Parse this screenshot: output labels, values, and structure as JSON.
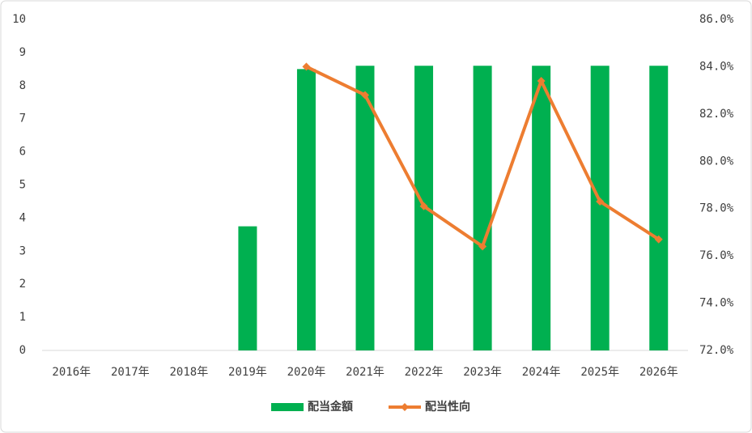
{
  "chart_data": {
    "type": "bar",
    "categories": [
      "2016年",
      "2017年",
      "2018年",
      "2019年",
      "2020年",
      "2021年",
      "2022年",
      "2023年",
      "2024年",
      "2025年",
      "2026年"
    ],
    "series": [
      {
        "name": "配当金額",
        "type": "bar",
        "color": "#00b050",
        "values": [
          null,
          null,
          null,
          3.75,
          8.5,
          8.6,
          8.6,
          8.6,
          8.6,
          8.6,
          8.6
        ]
      },
      {
        "name": "配当性向",
        "type": "line",
        "axis": "y2",
        "color": "#ed7d31",
        "values": [
          null,
          null,
          null,
          null,
          84.0,
          82.8,
          78.1,
          76.4,
          83.4,
          78.3,
          76.7
        ]
      }
    ],
    "ylim": [
      0,
      10
    ],
    "yticks": [
      0,
      1,
      2,
      3,
      4,
      5,
      6,
      7,
      8,
      9,
      10
    ],
    "y2lim": [
      72,
      86
    ],
    "y2ticks": [
      {
        "value": 72,
        "label": "72.0%"
      },
      {
        "value": 74,
        "label": "74.0%"
      },
      {
        "value": 76,
        "label": "76.0%"
      },
      {
        "value": 78,
        "label": "78.0%"
      },
      {
        "value": 80,
        "label": "80.0%"
      },
      {
        "value": 82,
        "label": "82.0%"
      },
      {
        "value": 84,
        "label": "84.0%"
      },
      {
        "value": 86,
        "label": "86.0%"
      }
    ],
    "grid": false,
    "legend": "bottom"
  }
}
